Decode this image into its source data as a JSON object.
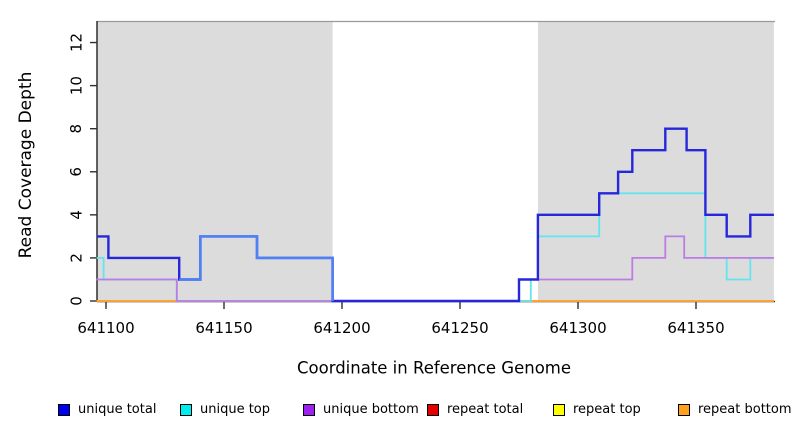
{
  "chart_data": {
    "type": "line",
    "subtype": "step-coverage",
    "xlabel": "Coordinate in Reference Genome",
    "ylabel": "Read Coverage Depth",
    "xlim": [
      641096,
      641383
    ],
    "ylim": [
      0,
      13
    ],
    "x_tick_values": [
      641100,
      641150,
      641200,
      641250,
      641300,
      641350
    ],
    "x_tick_labels": [
      "641100",
      "641150",
      "641200",
      "641250",
      "641300",
      "641350"
    ],
    "y_tick_values": [
      0,
      2,
      4,
      6,
      8,
      10,
      12
    ],
    "y_tick_labels": [
      "0",
      "2",
      "4",
      "6",
      "8",
      "10",
      "12"
    ],
    "grid": false,
    "legend_position": "bottom",
    "shaded_regions": {
      "fill_color": "#dcdcdc",
      "top_border_color": "#9a9a9a",
      "regions": [
        [
          641096,
          641196
        ],
        [
          641283,
          641383
        ]
      ]
    },
    "axis_color": "#2f2f2f",
    "series": [
      {
        "name": "unique total",
        "legend_color": "#0000ee",
        "line_color": "#2626dd",
        "line_width": 2.4,
        "segments": [
          [
            641096,
            641101,
            3
          ],
          [
            641101,
            641131,
            2
          ],
          [
            641131,
            641140,
            1
          ],
          [
            641140,
            641164,
            3
          ],
          [
            641164,
            641196,
            2
          ],
          [
            641196,
            641275,
            0
          ],
          [
            641275,
            641283,
            1
          ],
          [
            641283,
            641309,
            4
          ],
          [
            641309,
            641317,
            5
          ],
          [
            641317,
            641323,
            6
          ],
          [
            641323,
            641337,
            7
          ],
          [
            641337,
            641346,
            8
          ],
          [
            641346,
            641354,
            7
          ],
          [
            641354,
            641363,
            4
          ],
          [
            641363,
            641373,
            3
          ],
          [
            641373,
            641383,
            4
          ]
        ]
      },
      {
        "name": "unique top",
        "legend_color": "#00eded",
        "line_color": "#62e5ee",
        "line_width": 1.8,
        "segments": [
          [
            641096,
            641099,
            2
          ],
          [
            641099,
            641130,
            1
          ],
          [
            641130,
            641280,
            0
          ],
          [
            641280,
            641283,
            1
          ],
          [
            641283,
            641309,
            3
          ],
          [
            641309,
            641354,
            5
          ],
          [
            641354,
            641363,
            2
          ],
          [
            641363,
            641373,
            1
          ],
          [
            641373,
            641383,
            2
          ]
        ]
      },
      {
        "name": "unique bottom",
        "legend_color": "#a020f0",
        "line_color": "#bd7be4",
        "line_width": 1.8,
        "segments": [
          [
            641096,
            641130,
            1
          ],
          [
            641130,
            641275,
            0
          ],
          [
            641275,
            641323,
            1
          ],
          [
            641323,
            641337,
            2
          ],
          [
            641337,
            641345,
            3
          ],
          [
            641345,
            641383,
            2
          ]
        ]
      },
      {
        "name": "repeat total",
        "legend_color": "#e50000",
        "line_color": "#e03030",
        "line_width": 2,
        "segments": [
          [
            641096,
            641383,
            0
          ]
        ]
      },
      {
        "name": "repeat top",
        "legend_color": "#ffff00",
        "line_color": "#ffee00",
        "line_width": 2,
        "segments": [
          [
            641096,
            641383,
            0
          ]
        ]
      },
      {
        "name": "repeat bottom",
        "legend_color": "#ffa020",
        "line_color": "#ffa132",
        "line_width": 2,
        "segments": [
          [
            641096,
            641383,
            0
          ]
        ]
      }
    ],
    "draw_order": [
      "repeat total",
      "repeat top",
      "repeat bottom",
      "unique top",
      "unique bottom",
      "unique total"
    ],
    "highlight": {
      "series": "unique total",
      "from": 641131,
      "to": 641196,
      "color": "#4d82f7",
      "end_drop_to": 0
    }
  }
}
